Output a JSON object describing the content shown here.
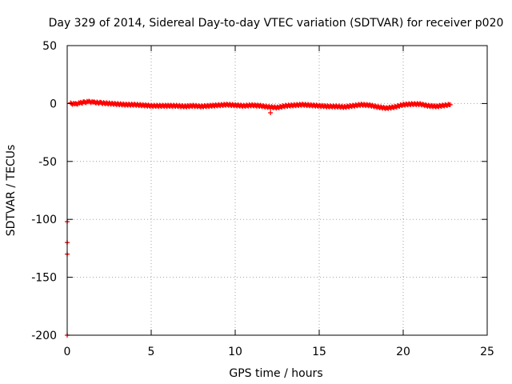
{
  "chart_data": {
    "type": "scatter",
    "title": "Day 329 of 2014, Sidereal Day-to-day VTEC variation (SDTVAR) for receiver p020",
    "xlabel": "GPS time / hours",
    "ylabel": "SDTVAR / TECUs",
    "xlim": [
      0,
      25
    ],
    "ylim": [
      -200,
      50
    ],
    "xticks": [
      0,
      5,
      10,
      15,
      20,
      25
    ],
    "yticks": [
      -200,
      -150,
      -100,
      -50,
      0,
      50
    ],
    "xtick_labels": [
      "0",
      "5",
      "10",
      "15",
      "20",
      "25"
    ],
    "ytick_labels": [
      "-200",
      "-150",
      "-100",
      "-50",
      "0",
      "50"
    ],
    "grid": true,
    "marker": "plus",
    "series": [
      {
        "name": "SDTVAR",
        "color": "#ff0000",
        "main_trace": {
          "x": [
            0.2,
            0.5,
            0.8,
            1.0,
            1.3,
            1.6,
            2.0,
            2.5,
            3.0,
            3.5,
            4.0,
            4.5,
            5.0,
            5.5,
            6.0,
            6.5,
            7.0,
            7.5,
            8.0,
            8.5,
            9.0,
            9.5,
            10.0,
            10.5,
            11.0,
            11.5,
            12.0,
            12.5,
            13.0,
            13.5,
            14.0,
            14.5,
            15.0,
            15.5,
            16.0,
            16.5,
            17.0,
            17.5,
            18.0,
            18.5,
            19.0,
            19.5,
            20.0,
            20.5,
            21.0,
            21.5,
            22.0,
            22.5,
            22.8
          ],
          "y": [
            0,
            -0.5,
            0.5,
            1,
            1.5,
            1,
            0.5,
            0,
            -0.5,
            -1,
            -1,
            -1.5,
            -2,
            -2,
            -2,
            -2,
            -2.5,
            -2,
            -2.5,
            -2,
            -1.5,
            -1,
            -1.5,
            -2,
            -1.5,
            -2,
            -3,
            -3.5,
            -2,
            -1.5,
            -1,
            -1.5,
            -2,
            -2.5,
            -2.5,
            -3,
            -2,
            -1,
            -1.5,
            -3,
            -4,
            -3,
            -1,
            -0.5,
            -0.5,
            -2,
            -2.5,
            -1.5,
            -1
          ]
        },
        "outliers": {
          "x": [
            12.1,
            0.0,
            0.0,
            0.0,
            0.0
          ],
          "y": [
            -8,
            -102,
            -120,
            -130,
            -200
          ]
        }
      }
    ]
  }
}
